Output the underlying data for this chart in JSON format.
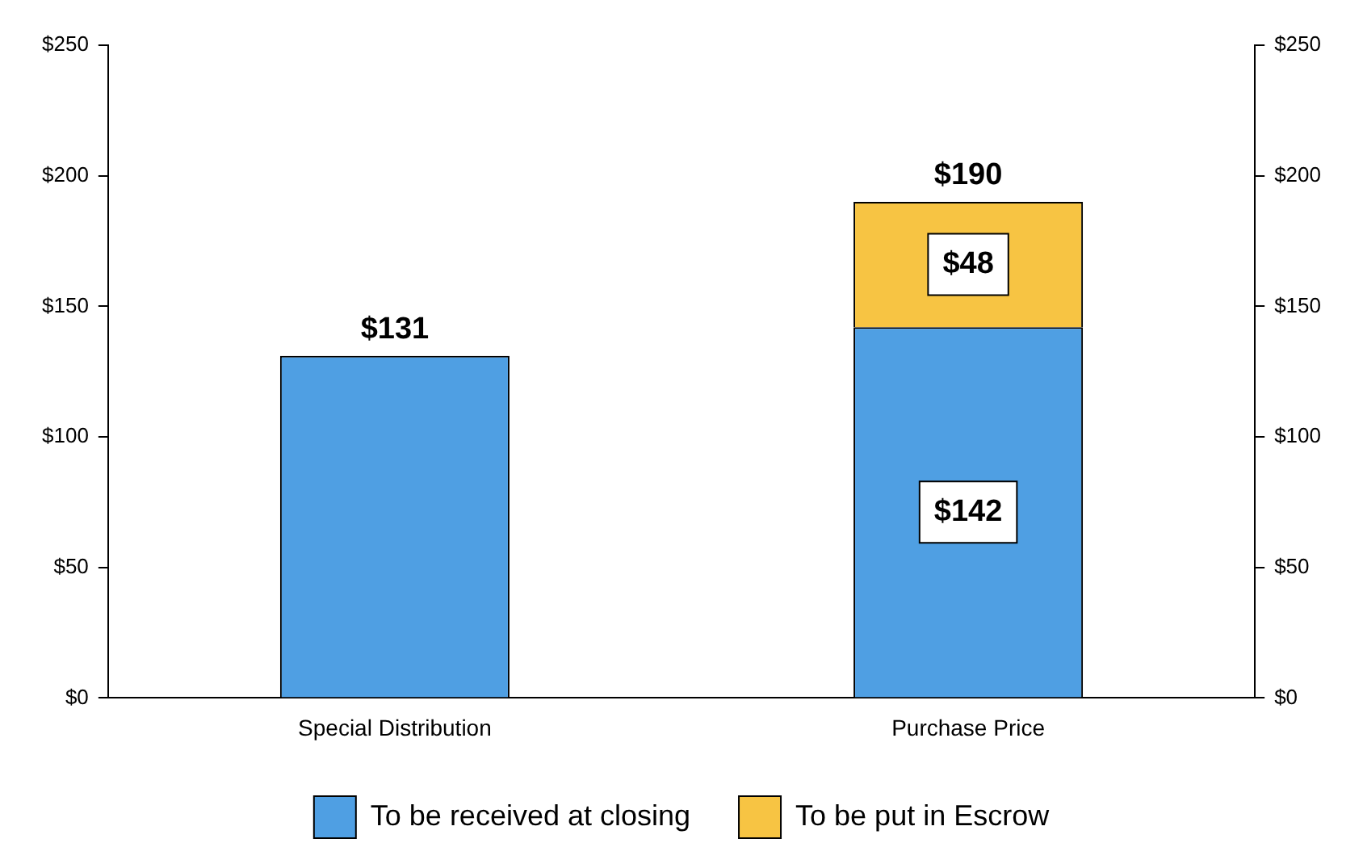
{
  "chart_data": {
    "type": "bar",
    "stacked": true,
    "categories": [
      "Special Distribution",
      "Purchase Price"
    ],
    "series": [
      {
        "name": "To be received at closing",
        "color": "#4f9fe3",
        "values": [
          131,
          142
        ],
        "value_labels": [
          null,
          "$142"
        ]
      },
      {
        "name": "To be put in Escrow",
        "color": "#f7c443",
        "values": [
          null,
          48
        ],
        "value_labels": [
          null,
          "$48"
        ]
      }
    ],
    "totals": [
      "$131",
      "$190"
    ],
    "ylim": [
      0,
      250
    ],
    "yticks": [
      {
        "value": 0,
        "label": "$0"
      },
      {
        "value": 50,
        "label": "$50"
      },
      {
        "value": 100,
        "label": "$100"
      },
      {
        "value": 150,
        "label": "$150"
      },
      {
        "value": 200,
        "label": "$200"
      },
      {
        "value": 250,
        "label": "$250"
      }
    ],
    "y2lim": [
      0,
      250
    ],
    "y2ticks": [
      {
        "value": 0,
        "label": "$0"
      },
      {
        "value": 50,
        "label": "$50"
      },
      {
        "value": 100,
        "label": "$100"
      },
      {
        "value": 150,
        "label": "$150"
      },
      {
        "value": 200,
        "label": "$200"
      },
      {
        "value": 250,
        "label": "$250"
      }
    ],
    "grid": false,
    "legend": "bottom"
  }
}
